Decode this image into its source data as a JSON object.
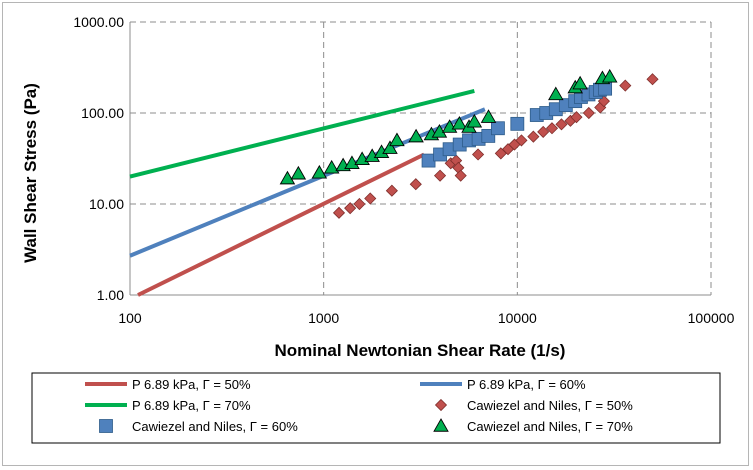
{
  "chart_data": {
    "type": "scatter",
    "title": "",
    "xlabel": "Nominal Newtonian Shear Rate (1/s)",
    "ylabel": "Wall Shear Stress (Pa)",
    "xscale": "log",
    "yscale": "log",
    "xlim": [
      100,
      100000
    ],
    "ylim": [
      1,
      1000
    ],
    "x_ticks": [
      "100",
      "1000",
      "10000",
      "100000"
    ],
    "y_ticks": [
      "1.00",
      "10.00",
      "100.00",
      "1000.00"
    ],
    "grid": "major, dashed",
    "legend_position": "bottom",
    "series": [
      {
        "name": "P  6.89  kPa, Γ = 50%",
        "kind": "line",
        "color": "#c0504d",
        "x": [
          110,
          3300
        ],
        "y": [
          1,
          35
        ]
      },
      {
        "name": "P  6.89  kPa, Γ = 60%",
        "kind": "line",
        "color": "#4f81bd",
        "x": [
          100,
          6800
        ],
        "y": [
          2.7,
          110
        ]
      },
      {
        "name": "P  6.89  kPa, Γ = 70%",
        "kind": "line",
        "color": "#00b050",
        "x": [
          100,
          6000
        ],
        "y": [
          20,
          175
        ]
      },
      {
        "name": "Cawiezel and Niles, Γ = 50%",
        "kind": "markers",
        "marker": "diamond",
        "color": "#c0504d",
        "x": [
          1200,
          1370,
          1530,
          1740,
          2250,
          2990,
          3990,
          4530,
          4830,
          4960,
          5100,
          6270,
          8220,
          8950,
          9670,
          10500,
          12100,
          13600,
          15100,
          16900,
          18800,
          20200,
          23400,
          26800,
          28000,
          36100,
          49900
        ],
        "y": [
          8.0,
          9.0,
          10.0,
          11.5,
          14.0,
          16.5,
          20.5,
          28.0,
          30.0,
          25.0,
          20.5,
          35.0,
          36.0,
          40.0,
          45.0,
          50.0,
          55.0,
          62.0,
          68.0,
          75.0,
          82.0,
          90.0,
          100.0,
          115.0,
          135.0,
          200.0,
          235.0
        ]
      },
      {
        "name": "Cawiezel and Niles, Γ = 60%",
        "kind": "markers",
        "marker": "square",
        "color": "#4f81bd",
        "x": [
          3480,
          3990,
          4470,
          5040,
          5630,
          6310,
          7080,
          7940,
          10000,
          12600,
          14100,
          15800,
          17800,
          19900,
          21300,
          23300,
          25400,
          26700,
          28400
        ],
        "y": [
          30.0,
          35.0,
          40.0,
          45.0,
          50.0,
          52.0,
          56.0,
          68.0,
          76.0,
          95.0,
          100.0,
          110.0,
          122.0,
          135.0,
          150.0,
          160.0,
          170.0,
          180.0,
          185.0
        ]
      },
      {
        "name": "Cawiezel and Niles, Γ = 70%",
        "kind": "markers",
        "marker": "triangle",
        "color": "#00b050",
        "x": [
          650,
          740,
          950,
          1100,
          1260,
          1400,
          1580,
          1780,
          1990,
          2200,
          2390,
          3000,
          3600,
          3960,
          4470,
          5020,
          5630,
          6000,
          7100,
          15800,
          19900,
          21100,
          27500,
          30000
        ],
        "y": [
          19.0,
          21.5,
          22.0,
          25.0,
          26.5,
          28.0,
          31.0,
          33.5,
          37.0,
          41.0,
          50.0,
          55.0,
          58.0,
          62.0,
          70.0,
          76.0,
          70.0,
          80.0,
          90.0,
          160.0,
          190.0,
          210.0,
          240.0,
          250.0
        ]
      }
    ]
  }
}
